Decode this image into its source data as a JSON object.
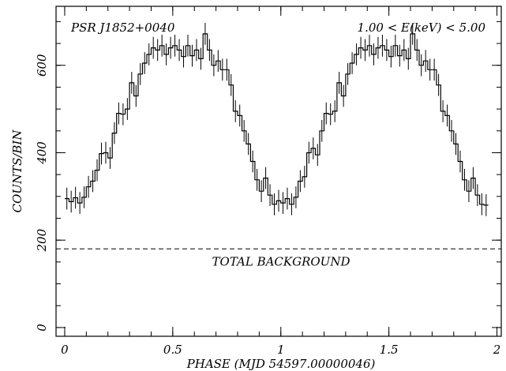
{
  "chart_data": {
    "type": "line",
    "step": true,
    "title_left": "PSR J1852+0040",
    "title_right": "1.00 < E(keV) < 5.00",
    "xlabel": "PHASE (MJD 54597.00000046)",
    "ylabel": "COUNTS/BIN",
    "xlim": [
      -0.04,
      2.02
    ],
    "ylim": [
      -20,
      735
    ],
    "xticks": [
      0,
      0.5,
      1,
      1.5,
      2
    ],
    "xtick_labels": [
      "0",
      "0.5",
      "1",
      "1.5",
      "2"
    ],
    "yticks": [
      0,
      200,
      400,
      600
    ],
    "ytick_labels": [
      "0",
      "200",
      "400",
      "600"
    ],
    "bin_width": 0.02,
    "background": {
      "value": 180,
      "label": "TOTAL BACKGROUND"
    },
    "error": 25,
    "series": [
      {
        "x_start": 0.0,
        "values": [
          295,
          288,
          297,
          285,
          298,
          322,
          335,
          360,
          398,
          400,
          388,
          445,
          490,
          488,
          500,
          560,
          530,
          580,
          605,
          625,
          640,
          635,
          645,
          625,
          640,
          645,
          635,
          620,
          645,
          622,
          635,
          615,
          672,
          635,
          600,
          610,
          590,
          590,
          555,
          495,
          485,
          450,
          420,
          380,
          338,
          312,
          342,
          303,
          282,
          290,
          285,
          295,
          282,
          298,
          335,
          345,
          400,
          410,
          395,
          450,
          490,
          488,
          495,
          560,
          530,
          580,
          605,
          625,
          640,
          635,
          645,
          625,
          640,
          645,
          635,
          620,
          645,
          622,
          635,
          615,
          672,
          635,
          600,
          610,
          590,
          590,
          555,
          495,
          485,
          450,
          420,
          380,
          338,
          312,
          342,
          303,
          282,
          280
        ]
      }
    ]
  }
}
